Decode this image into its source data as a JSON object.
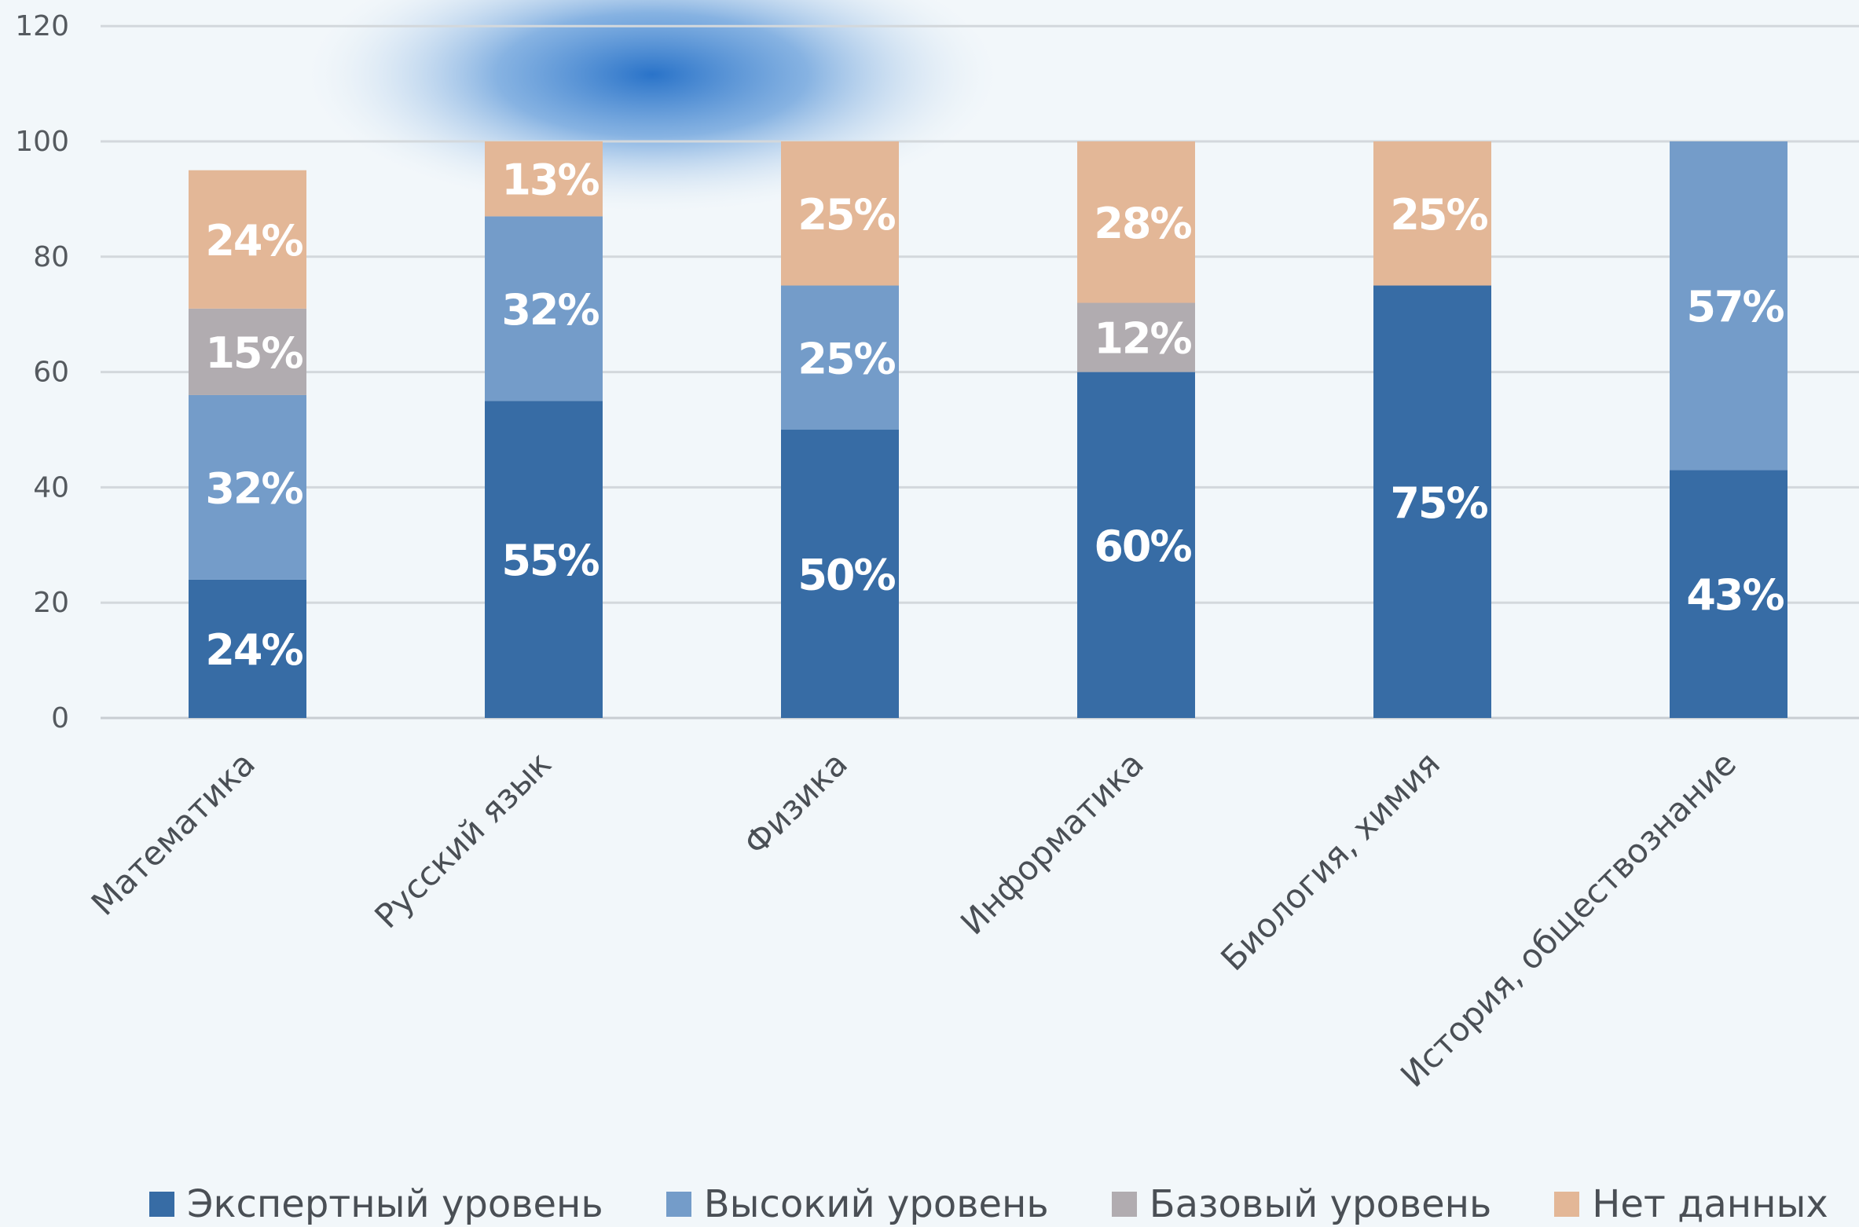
{
  "chart_data": {
    "type": "bar",
    "stacked": true,
    "categories": [
      "Математика",
      "Русский язык",
      "Физика",
      "Информатика",
      "Биология, химия",
      "История, обществознание"
    ],
    "series": [
      {
        "name": "Экспертный уровень",
        "color": "#376ca5",
        "values": [
          24,
          55,
          50,
          60,
          75,
          43
        ],
        "labels": [
          "24%",
          "55%",
          "50%",
          "60%",
          "75%",
          "43%"
        ]
      },
      {
        "name": "Высокий уровень",
        "color": "#749cc9",
        "values": [
          32,
          32,
          25,
          0,
          0,
          57
        ],
        "labels": [
          "32%",
          "32%",
          "25%",
          "",
          "",
          "57%"
        ]
      },
      {
        "name": "Базовый уровень",
        "color": "#b1acb0",
        "values": [
          15,
          0,
          0,
          12,
          0,
          0
        ],
        "labels": [
          "15%",
          "",
          "",
          "12%",
          "",
          ""
        ]
      },
      {
        "name": "Нет данных",
        "color": "#e3b797",
        "values": [
          24,
          13,
          25,
          28,
          25,
          0
        ],
        "labels": [
          "24%",
          "13%",
          "25%",
          "28%",
          "25%",
          ""
        ]
      }
    ],
    "yticks": [
      "0",
      "20",
      "40",
      "60",
      "80",
      "100",
      "120"
    ],
    "ylim": [
      0,
      120
    ],
    "grid": true,
    "legend_position": "bottom"
  }
}
